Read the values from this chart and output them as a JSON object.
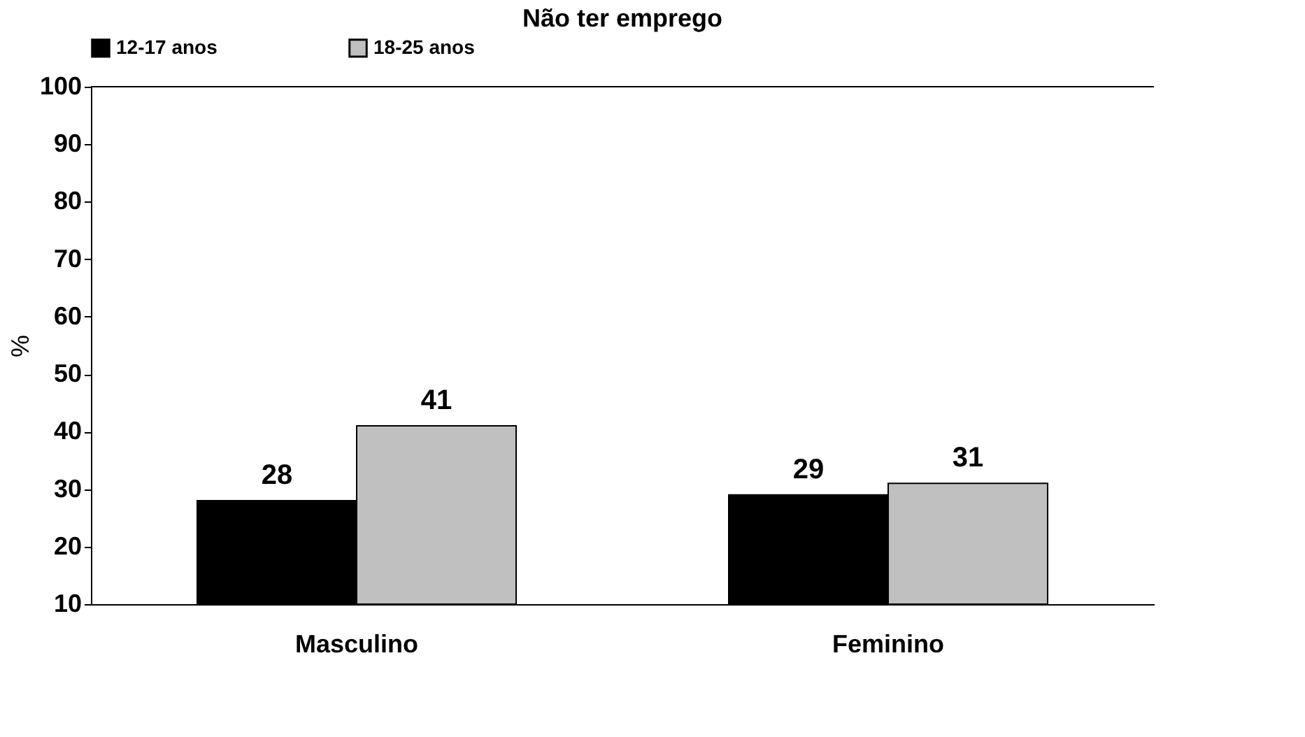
{
  "chart_data": {
    "type": "bar",
    "title": "Não ter emprego",
    "ylabel": "%",
    "categories": [
      "Masculino",
      "Feminino"
    ],
    "series": [
      {
        "name": "12-17 anos",
        "color": "#000000",
        "values": [
          28,
          29
        ]
      },
      {
        "name": "18-25 anos",
        "color": "#c0c0c0",
        "values": [
          41,
          31
        ]
      }
    ],
    "ylim": [
      10,
      100
    ],
    "yticks": [
      10,
      20,
      30,
      40,
      50,
      60,
      70,
      80,
      90,
      100
    ],
    "data_labels": true,
    "legend": "top",
    "grid": false
  }
}
